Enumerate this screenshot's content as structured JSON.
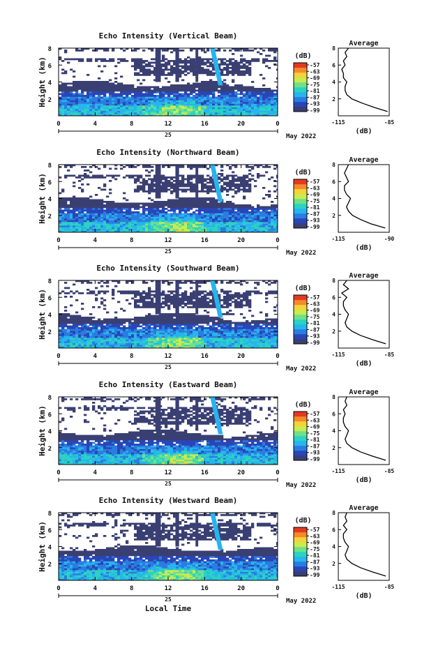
{
  "colors": {
    "colorbar": [
      "#3a3f73",
      "#2946b8",
      "#2a7de0",
      "#28b4ee",
      "#2bd3c0",
      "#6fe08c",
      "#c8ec4e",
      "#f5d23b",
      "#f58a2a",
      "#e23a22"
    ],
    "line": "#000000"
  },
  "chart_data": [
    {
      "type": "heatmap",
      "title": "Echo Intensity (Vertical Beam)",
      "ylabel": "Height (km)",
      "xlabel": "",
      "x_ticks": [
        "0",
        "4",
        "8",
        "12",
        "16",
        "20",
        "0"
      ],
      "y_ticks": [
        "2",
        "4",
        "6",
        "8"
      ],
      "ylim": [
        0,
        8
      ],
      "xlim": [
        0,
        24
      ],
      "date_day": "25",
      "date_label": "May 2022",
      "colorbar_unit": "(dB)",
      "colorbar_ticks": [
        "-57",
        "-63",
        "-69",
        "-75",
        "-81",
        "-87",
        "-93",
        "-99"
      ],
      "profile": {
        "title": "Average",
        "xlabel": "(dB)",
        "x_ticks": [
          "-115",
          "-85"
        ],
        "xlim": [
          -115,
          -85
        ],
        "y": [
          0.5,
          1,
          1.5,
          2,
          2.5,
          3,
          3.5,
          4,
          4.5,
          5,
          5.5,
          6,
          6.5,
          7,
          7.5,
          8
        ],
        "x": [
          -86,
          -94,
          -101,
          -107,
          -110,
          -111,
          -111,
          -110,
          -112,
          -112,
          -113,
          -111,
          -112,
          -110,
          -111,
          -109
        ]
      }
    },
    {
      "type": "heatmap",
      "title": "Echo Intensity (Northward Beam)",
      "ylabel": "Height (km)",
      "xlabel": "",
      "x_ticks": [
        "0",
        "4",
        "8",
        "12",
        "16",
        "20",
        "0"
      ],
      "y_ticks": [
        "2",
        "4",
        "6",
        "8"
      ],
      "ylim": [
        0,
        8
      ],
      "xlim": [
        0,
        24
      ],
      "date_day": "25",
      "date_label": "May 2022",
      "colorbar_unit": "(dB)",
      "colorbar_ticks": [
        "-57",
        "-63",
        "-69",
        "-75",
        "-81",
        "-87",
        "-93",
        "-99"
      ],
      "profile": {
        "title": "Average",
        "xlabel": "(dB)",
        "x_ticks": [
          "-115",
          "-90"
        ],
        "xlim": [
          -115,
          -90
        ],
        "y": [
          0.5,
          1,
          1.5,
          2,
          2.5,
          3,
          3.5,
          4,
          4.5,
          5,
          5.5,
          6,
          6.5,
          7,
          7.5,
          8
        ],
        "x": [
          -92,
          -99,
          -104,
          -108,
          -110,
          -111,
          -110,
          -109,
          -111,
          -112,
          -112,
          -110,
          -111,
          -112,
          -111,
          -110
        ]
      }
    },
    {
      "type": "heatmap",
      "title": "Echo Intensity (Southward Beam)",
      "ylabel": "Height (km)",
      "xlabel": "",
      "x_ticks": [
        "0",
        "4",
        "8",
        "12",
        "16",
        "20",
        "0"
      ],
      "y_ticks": [
        "2",
        "4",
        "6",
        "8"
      ],
      "ylim": [
        0,
        8
      ],
      "xlim": [
        0,
        24
      ],
      "date_day": "25",
      "date_label": "May 2022",
      "colorbar_unit": "(dB)",
      "colorbar_ticks": [
        "-57",
        "-63",
        "-69",
        "-75",
        "-81",
        "-87",
        "-93",
        "-99"
      ],
      "profile": {
        "title": "Average",
        "xlabel": "(dB)",
        "x_ticks": [
          "-115",
          "-85"
        ],
        "xlim": [
          -115,
          -85
        ],
        "y": [
          0.5,
          1,
          1.5,
          2,
          2.5,
          3,
          3.5,
          4,
          4.5,
          5,
          5.5,
          6,
          6.5,
          7,
          7.5,
          8
        ],
        "x": [
          -87,
          -95,
          -102,
          -107,
          -110,
          -111,
          -110,
          -109,
          -111,
          -112,
          -112,
          -110,
          -113,
          -109,
          -112,
          -110
        ]
      }
    },
    {
      "type": "heatmap",
      "title": "Echo Intensity (Eastward Beam)",
      "ylabel": "Height (km)",
      "xlabel": "",
      "x_ticks": [
        "0",
        "4",
        "8",
        "12",
        "16",
        "20",
        "0"
      ],
      "y_ticks": [
        "2",
        "4",
        "6",
        "8"
      ],
      "ylim": [
        0,
        8
      ],
      "xlim": [
        0,
        24
      ],
      "date_day": "25",
      "date_label": "May 2022",
      "colorbar_unit": "(dB)",
      "colorbar_ticks": [
        "-57",
        "-63",
        "-69",
        "-75",
        "-81",
        "-87",
        "-93",
        "-99"
      ],
      "profile": {
        "title": "Average",
        "xlabel": "(dB)",
        "x_ticks": [
          "-115",
          "-85"
        ],
        "xlim": [
          -115,
          -85
        ],
        "y": [
          0.5,
          1,
          1.5,
          2,
          2.5,
          3,
          3.5,
          4,
          4.5,
          5,
          5.5,
          6,
          6.5,
          7,
          7.5,
          8
        ],
        "x": [
          -87,
          -95,
          -102,
          -107,
          -110,
          -111,
          -110,
          -109,
          -111,
          -112,
          -112,
          -111,
          -112,
          -110,
          -111,
          -110
        ]
      }
    },
    {
      "type": "heatmap",
      "title": "Echo Intensity (Westward Beam)",
      "ylabel": "Height (km)",
      "xlabel": "Local Time",
      "x_ticks": [
        "0",
        "4",
        "8",
        "12",
        "16",
        "20",
        "0"
      ],
      "y_ticks": [
        "2",
        "4",
        "6",
        "8"
      ],
      "ylim": [
        0,
        8
      ],
      "xlim": [
        0,
        24
      ],
      "date_day": "25",
      "date_label": "May 2022",
      "colorbar_unit": "(dB)",
      "colorbar_ticks": [
        "-57",
        "-63",
        "-69",
        "-75",
        "-81",
        "-87",
        "-93",
        "-99"
      ],
      "profile": {
        "title": "Average",
        "xlabel": "(dB)",
        "x_ticks": [
          "-115",
          "-85"
        ],
        "xlim": [
          -115,
          -85
        ],
        "y": [
          0.5,
          1,
          1.5,
          2,
          2.5,
          3,
          3.5,
          4,
          4.5,
          5,
          5.5,
          6,
          6.5,
          7,
          7.5,
          8
        ],
        "x": [
          -87,
          -95,
          -102,
          -107,
          -110,
          -111,
          -110,
          -109,
          -111,
          -112,
          -112,
          -110,
          -112,
          -110,
          -111,
          -110
        ]
      }
    }
  ]
}
